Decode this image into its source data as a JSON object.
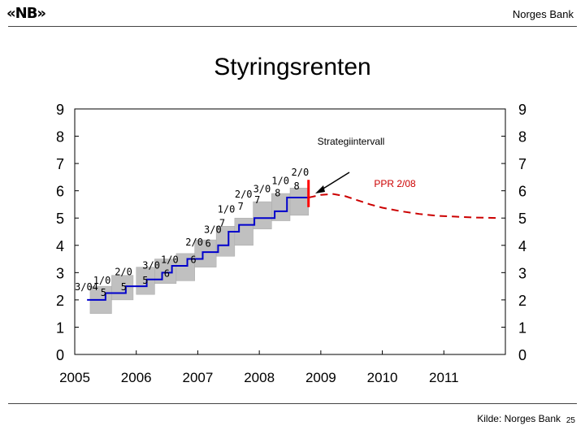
{
  "header": {
    "logo_text": "«NB»",
    "brand": "Norges Bank",
    "title": "Styringsrenten"
  },
  "footer": {
    "source": "Kilde: Norges Bank",
    "page_number": "25"
  },
  "colors": {
    "policy_rate": "#0000cc",
    "forecast": "#cc0000",
    "interval_fill": "#c0c0c0",
    "marker": "#ff0000"
  },
  "chart_data": {
    "type": "line",
    "title": "Styringsrenten",
    "xlim": [
      2005,
      2012
    ],
    "ylim": [
      0,
      9
    ],
    "x_ticks": [
      "2005",
      "2006",
      "2007",
      "2008",
      "2009",
      "2010",
      "2011"
    ],
    "y_ticks": [
      "0",
      "1",
      "2",
      "3",
      "4",
      "5",
      "6",
      "7",
      "8",
      "9"
    ],
    "policy_rate": {
      "x": [
        2005.2,
        2005.5,
        2005.5,
        2005.83,
        2005.83,
        2006.17,
        2006.17,
        2006.42,
        2006.42,
        2006.58,
        2006.58,
        2006.83,
        2006.83,
        2007.08,
        2007.08,
        2007.33,
        2007.33,
        2007.5,
        2007.5,
        2007.67,
        2007.67,
        2007.92,
        2007.92,
        2008.25,
        2008.25,
        2008.45,
        2008.45,
        2008.8
      ],
      "y": [
        2.0,
        2.0,
        2.25,
        2.25,
        2.5,
        2.5,
        2.75,
        2.75,
        3.0,
        3.0,
        3.25,
        3.25,
        3.5,
        3.5,
        3.75,
        3.75,
        4.0,
        4.0,
        4.5,
        4.5,
        4.75,
        4.75,
        5.0,
        5.0,
        5.25,
        5.25,
        5.75,
        5.75
      ]
    },
    "forecast": {
      "name": "PPR 2/08",
      "x": [
        2008.8,
        2009.0,
        2009.2,
        2009.4,
        2009.6,
        2009.8,
        2010.0,
        2010.3,
        2010.6,
        2010.9,
        2011.2,
        2011.5,
        2011.9
      ],
      "y": [
        5.75,
        5.85,
        5.88,
        5.8,
        5.65,
        5.5,
        5.38,
        5.25,
        5.15,
        5.08,
        5.05,
        5.02,
        5.0
      ]
    },
    "strategy_intervals": [
      {
        "x0": 2005.25,
        "x1": 2005.6,
        "y0": 1.5,
        "y1": 2.5
      },
      {
        "x0": 2005.6,
        "x1": 2005.95,
        "y0": 2.0,
        "y1": 2.9
      },
      {
        "x0": 2006.0,
        "x1": 2006.3,
        "y0": 2.2,
        "y1": 3.2
      },
      {
        "x0": 2006.3,
        "x1": 2006.65,
        "y0": 2.6,
        "y1": 3.5
      },
      {
        "x0": 2006.65,
        "x1": 2006.95,
        "y0": 2.7,
        "y1": 3.7
      },
      {
        "x0": 2006.95,
        "x1": 2007.3,
        "y0": 3.2,
        "y1": 4.2
      },
      {
        "x0": 2007.3,
        "x1": 2007.6,
        "y0": 3.6,
        "y1": 4.7
      },
      {
        "x0": 2007.6,
        "x1": 2007.9,
        "y0": 4.0,
        "y1": 5.0
      },
      {
        "x0": 2007.9,
        "x1": 2008.2,
        "y0": 4.6,
        "y1": 5.6
      },
      {
        "x0": 2008.2,
        "x1": 2008.5,
        "y0": 4.9,
        "y1": 5.9
      },
      {
        "x0": 2008.5,
        "x1": 2008.8,
        "y0": 5.1,
        "y1": 6.1
      }
    ],
    "report_labels": [
      {
        "text": "3/04",
        "x": 2005.0,
        "y": 2.35
      },
      {
        "text": "5",
        "x": 2005.42,
        "y": 2.15
      },
      {
        "text": "1/0",
        "x": 2005.3,
        "y": 2.6
      },
      {
        "text": "2/0",
        "x": 2005.65,
        "y": 2.9
      },
      {
        "text": "5",
        "x": 2005.75,
        "y": 2.35
      },
      {
        "text": "3/0",
        "x": 2006.1,
        "y": 3.15
      },
      {
        "text": "5",
        "x": 2006.1,
        "y": 2.6
      },
      {
        "text": "1/0",
        "x": 2006.4,
        "y": 3.35
      },
      {
        "text": "6",
        "x": 2006.45,
        "y": 2.85
      },
      {
        "text": "2/0",
        "x": 2006.8,
        "y": 4.0
      },
      {
        "text": "6",
        "x": 2006.88,
        "y": 3.35
      },
      {
        "text": "3/0",
        "x": 2007.1,
        "y": 4.45
      },
      {
        "text": "6",
        "x": 2007.12,
        "y": 3.95
      },
      {
        "text": "1/0",
        "x": 2007.32,
        "y": 5.2
      },
      {
        "text": "7",
        "x": 2007.35,
        "y": 4.7
      },
      {
        "text": "2/0",
        "x": 2007.6,
        "y": 5.75
      },
      {
        "text": "7",
        "x": 2007.65,
        "y": 5.3
      },
      {
        "text": "3/0",
        "x": 2007.9,
        "y": 5.95
      },
      {
        "text": "7",
        "x": 2007.92,
        "y": 5.55
      },
      {
        "text": "1/0",
        "x": 2008.2,
        "y": 6.25
      },
      {
        "text": "8",
        "x": 2008.25,
        "y": 5.8
      },
      {
        "text": "2/0",
        "x": 2008.52,
        "y": 6.55
      },
      {
        "text": "8",
        "x": 2008.56,
        "y": 6.05
      }
    ],
    "annotations": {
      "interval_label": "Strategiintervall",
      "forecast_label": "PPR 2/08"
    },
    "marker_x": 2008.8,
    "marker_y": [
      5.4,
      6.4
    ],
    "grid": false,
    "legend": "none"
  }
}
